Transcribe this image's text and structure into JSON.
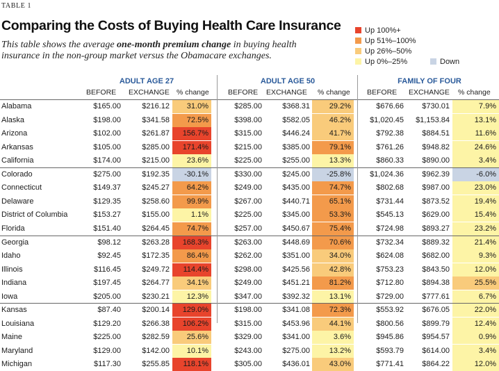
{
  "header": {
    "table_label": "TABLE 1",
    "title": "Comparing the Costs of Buying Health Care Insurance",
    "subtitle_parts": [
      "This table shows the average ",
      "one-month premium change",
      " in buying health insurance in the non-group market versus the Obamacare exchanges."
    ]
  },
  "legend": {
    "items": [
      {
        "label": "Up 100%+",
        "color": "#e8442c"
      },
      {
        "label": "Up 51%–100%",
        "color": "#f39a4b"
      },
      {
        "label": "Up 26%–50%",
        "color": "#f9cb7b"
      },
      {
        "label": "Up 0%–25%",
        "color": "#fdf4a6"
      },
      {
        "label": "Down",
        "color": "#c9d4e4"
      }
    ]
  },
  "groups": [
    "ADULT AGE 27",
    "ADULT AGE 50",
    "FAMILY OF FOUR"
  ],
  "columns": {
    "before": "BEFORE",
    "exchange": "EXCHANGE",
    "change": "% change"
  },
  "rows": [
    {
      "state": "Alabama",
      "a27": [
        "$165.00",
        "$216.12",
        "31.0%"
      ],
      "a50": [
        "$285.00",
        "$368.31",
        "29.2%"
      ],
      "fam": [
        "$676.66",
        "$730.01",
        "7.9%"
      ]
    },
    {
      "state": "Alaska",
      "a27": [
        "$198.00",
        "$341.58",
        "72.5%"
      ],
      "a50": [
        "$398.00",
        "$582.05",
        "46.2%"
      ],
      "fam": [
        "$1,020.45",
        "$1,153.84",
        "13.1%"
      ]
    },
    {
      "state": "Arizona",
      "a27": [
        "$102.00",
        "$261.87",
        "156.7%"
      ],
      "a50": [
        "$315.00",
        "$446.24",
        "41.7%"
      ],
      "fam": [
        "$792.38",
        "$884.51",
        "11.6%"
      ]
    },
    {
      "state": "Arkansas",
      "a27": [
        "$105.00",
        "$285.00",
        "171.4%"
      ],
      "a50": [
        "$215.00",
        "$385.00",
        "79.1%"
      ],
      "fam": [
        "$761.26",
        "$948.82",
        "24.6%"
      ]
    },
    {
      "state": "California",
      "a27": [
        "$174.00",
        "$215.00",
        "23.6%"
      ],
      "a50": [
        "$225.00",
        "$255.00",
        "13.3%"
      ],
      "fam": [
        "$860.33",
        "$890.00",
        "3.4%"
      ]
    },
    {
      "state": "Colorado",
      "a27": [
        "$275.00",
        "$192.35",
        "-30.1%"
      ],
      "a50": [
        "$330.00",
        "$245.00",
        "-25.8%"
      ],
      "fam": [
        "$1,024.36",
        "$962.39",
        "-6.0%"
      ]
    },
    {
      "state": "Connecticut",
      "a27": [
        "$149.37",
        "$245.27",
        "64.2%"
      ],
      "a50": [
        "$249.00",
        "$435.00",
        "74.7%"
      ],
      "fam": [
        "$802.68",
        "$987.00",
        "23.0%"
      ]
    },
    {
      "state": "Delaware",
      "a27": [
        "$129.35",
        "$258.60",
        "99.9%"
      ],
      "a50": [
        "$267.00",
        "$440.71",
        "65.1%"
      ],
      "fam": [
        "$731.44",
        "$873.52",
        "19.4%"
      ]
    },
    {
      "state": "District of Columbia",
      "a27": [
        "$153.27",
        "$155.00",
        "1.1%"
      ],
      "a50": [
        "$225.00",
        "$345.00",
        "53.3%"
      ],
      "fam": [
        "$545.13",
        "$629.00",
        "15.4%"
      ]
    },
    {
      "state": "Florida",
      "a27": [
        "$151.40",
        "$264.45",
        "74.7%"
      ],
      "a50": [
        "$257.00",
        "$450.67",
        "75.4%"
      ],
      "fam": [
        "$724.98",
        "$893.27",
        "23.2%"
      ]
    },
    {
      "state": "Georgia",
      "a27": [
        "$98.12",
        "$263.28",
        "168.3%"
      ],
      "a50": [
        "$263.00",
        "$448.69",
        "70.6%"
      ],
      "fam": [
        "$732.34",
        "$889.32",
        "21.4%"
      ]
    },
    {
      "state": "Idaho",
      "a27": [
        "$92.45",
        "$172.35",
        "86.4%"
      ],
      "a50": [
        "$262.00",
        "$351.00",
        "34.0%"
      ],
      "fam": [
        "$624.08",
        "$682.00",
        "9.3%"
      ]
    },
    {
      "state": "Illinois",
      "a27": [
        "$116.45",
        "$249.72",
        "114.4%"
      ],
      "a50": [
        "$298.00",
        "$425.56",
        "42.8%"
      ],
      "fam": [
        "$753.23",
        "$843.50",
        "12.0%"
      ]
    },
    {
      "state": "Indiana",
      "a27": [
        "$197.45",
        "$264.77",
        "34.1%"
      ],
      "a50": [
        "$249.00",
        "$451.21",
        "81.2%"
      ],
      "fam": [
        "$712.80",
        "$894.38",
        "25.5%"
      ]
    },
    {
      "state": "Iowa",
      "a27": [
        "$205.00",
        "$230.21",
        "12.3%"
      ],
      "a50": [
        "$347.00",
        "$392.32",
        "13.1%"
      ],
      "fam": [
        "$729.00",
        "$777.61",
        "6.7%"
      ]
    },
    {
      "state": "Kansas",
      "a27": [
        "$87.40",
        "$200.14",
        "129.0%"
      ],
      "a50": [
        "$198.00",
        "$341.08",
        "72.3%"
      ],
      "fam": [
        "$553.92",
        "$676.05",
        "22.0%"
      ]
    },
    {
      "state": "Louisiana",
      "a27": [
        "$129.20",
        "$266.38",
        "106.2%"
      ],
      "a50": [
        "$315.00",
        "$453.96",
        "44.1%"
      ],
      "fam": [
        "$800.56",
        "$899.79",
        "12.4%"
      ]
    },
    {
      "state": "Maine",
      "a27": [
        "$225.00",
        "$282.59",
        "25.6%"
      ],
      "a50": [
        "$329.00",
        "$341.00",
        "3.6%"
      ],
      "fam": [
        "$945.86",
        "$954.57",
        "0.9%"
      ]
    },
    {
      "state": "Maryland",
      "a27": [
        "$129.00",
        "$142.00",
        "10.1%"
      ],
      "a50": [
        "$243.00",
        "$275.00",
        "13.2%"
      ],
      "fam": [
        "$593.79",
        "$614.00",
        "3.4%"
      ]
    },
    {
      "state": "Michigan",
      "a27": [
        "$117.30",
        "$255.85",
        "118.1%"
      ],
      "a50": [
        "$305.00",
        "$436.01",
        "43.0%"
      ],
      "fam": [
        "$771.41",
        "$864.22",
        "12.0%"
      ]
    }
  ]
}
